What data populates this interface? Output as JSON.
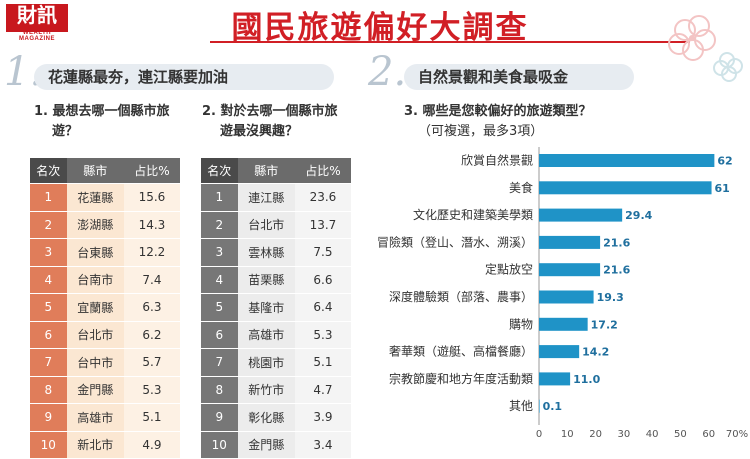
{
  "header": {
    "logo": "財訊",
    "logo_sub": "WEALTH MAGAZINE",
    "title": "國民旅遊偏好大調查"
  },
  "section1": {
    "number": "1.",
    "heading": "花蓮縣最夯，連江縣要加油",
    "q1": {
      "line1": "1. 最想去哪一個縣市旅",
      "line2": "遊？"
    },
    "q2": {
      "line1": "2. 對於去哪一個縣市旅",
      "line2": "遊最沒興趣？"
    },
    "columns": [
      "名次",
      "縣市",
      "占比%"
    ],
    "table1": [
      {
        "rank": "1",
        "name": "花蓮縣",
        "value": "15.6"
      },
      {
        "rank": "2",
        "name": "澎湖縣",
        "value": "14.3"
      },
      {
        "rank": "3",
        "name": "台東縣",
        "value": "12.2"
      },
      {
        "rank": "4",
        "name": "台南市",
        "value": "7.4"
      },
      {
        "rank": "5",
        "name": "宜蘭縣",
        "value": "6.3"
      },
      {
        "rank": "6",
        "name": "台北市",
        "value": "6.2"
      },
      {
        "rank": "7",
        "name": "台中市",
        "value": "5.7"
      },
      {
        "rank": "8",
        "name": "金門縣",
        "value": "5.3"
      },
      {
        "rank": "9",
        "name": "高雄市",
        "value": "5.1"
      },
      {
        "rank": "10",
        "name": "新北市",
        "value": "4.9"
      }
    ],
    "table2": [
      {
        "rank": "1",
        "name": "連江縣",
        "value": "23.6"
      },
      {
        "rank": "2",
        "name": "台北市",
        "value": "13.7"
      },
      {
        "rank": "3",
        "name": "雲林縣",
        "value": "7.5"
      },
      {
        "rank": "4",
        "name": "苗栗縣",
        "value": "6.6"
      },
      {
        "rank": "5",
        "name": "基隆市",
        "value": "6.4"
      },
      {
        "rank": "6",
        "name": "高雄市",
        "value": "5.3"
      },
      {
        "rank": "7",
        "name": "桃園市",
        "value": "5.1"
      },
      {
        "rank": "8",
        "name": "新竹市",
        "value": "4.7"
      },
      {
        "rank": "9",
        "name": "彰化縣",
        "value": "3.9"
      },
      {
        "rank": "10",
        "name": "金門縣",
        "value": "3.4"
      }
    ]
  },
  "section2": {
    "number": "2.",
    "heading": "自然景觀和美食最吸金",
    "q3": {
      "line1": "3. 哪些是您較偏好的旅遊類型？",
      "line2": "（可複選，最多3項）"
    }
  },
  "colors": {
    "accent": "#d11f25",
    "bar": "#1f93c7",
    "rank1": "#e07d5a",
    "rank2": "#777777"
  },
  "chart_data": {
    "type": "bar",
    "orientation": "horizontal",
    "categories": [
      "欣賞自然景觀",
      "美食",
      "文化歷史和建築美學類",
      "冒險類（登山、潛水、溯溪）",
      "定點放空",
      "深度體驗類（部落、農事）",
      "購物",
      "奢華類（遊艇、高檔餐廳）",
      "宗教節慶和地方年度活動類",
      "其他"
    ],
    "values": [
      62,
      61,
      29.4,
      21.6,
      21.6,
      19.3,
      17.2,
      14.2,
      11.0,
      0.1
    ],
    "value_labels": [
      "62",
      "61",
      "29.4",
      "21.6",
      "21.6",
      "19.3",
      "17.2",
      "14.2",
      "11.0",
      "0.1"
    ],
    "xlim": [
      0,
      70
    ],
    "x_ticks": [
      "0",
      "10",
      "20",
      "30",
      "40",
      "50",
      "60",
      "70%"
    ],
    "grid": false
  }
}
